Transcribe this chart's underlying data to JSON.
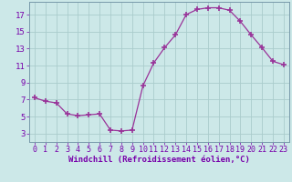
{
  "x": [
    0,
    1,
    2,
    3,
    4,
    5,
    6,
    7,
    8,
    9,
    10,
    11,
    12,
    13,
    14,
    15,
    16,
    17,
    18,
    19,
    20,
    21,
    22,
    23
  ],
  "y": [
    7.2,
    6.8,
    6.6,
    5.3,
    5.1,
    5.2,
    5.3,
    3.4,
    3.3,
    3.4,
    8.6,
    11.3,
    13.1,
    14.6,
    17.0,
    17.6,
    17.8,
    17.8,
    17.5,
    16.2,
    14.6,
    13.1,
    11.5,
    11.1
  ],
  "line_color": "#993399",
  "marker": "+",
  "marker_size": 4,
  "bg_color": "#cce8e8",
  "grid_color": "#aacccc",
  "xlabel": "Windchill (Refroidissement éolien,°C)",
  "xlim": [
    -0.5,
    23.5
  ],
  "ylim": [
    2.0,
    18.5
  ],
  "yticks": [
    3,
    5,
    7,
    9,
    11,
    13,
    15,
    17
  ],
  "xticks": [
    0,
    1,
    2,
    3,
    4,
    5,
    6,
    7,
    8,
    9,
    10,
    11,
    12,
    13,
    14,
    15,
    16,
    17,
    18,
    19,
    20,
    21,
    22,
    23
  ],
  "spine_color": "#7799aa",
  "label_color": "#7700aa",
  "tick_fontsize": 6.0,
  "xlabel_fontsize": 6.5
}
